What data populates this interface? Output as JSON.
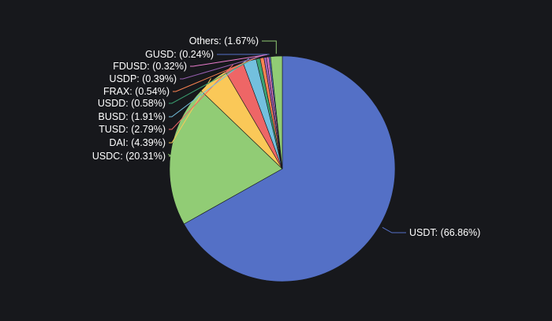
{
  "chart_data": {
    "type": "pie",
    "start_angle_deg": 0,
    "direction": "clockwise",
    "legend": "none",
    "slices": [
      {
        "label": "USDT",
        "value": 66.86,
        "text": "USDT: (66.86%)",
        "color": "#5470c6"
      },
      {
        "label": "USDC",
        "value": 20.31,
        "text": "USDC: (20.31%)",
        "color": "#91cc75"
      },
      {
        "label": "DAI",
        "value": 4.39,
        "text": "DAI: (4.39%)",
        "color": "#fac858"
      },
      {
        "label": "TUSD",
        "value": 2.79,
        "text": "TUSD: (2.79%)",
        "color": "#ee6666"
      },
      {
        "label": "BUSD",
        "value": 1.91,
        "text": "BUSD: (1.91%)",
        "color": "#73c0de"
      },
      {
        "label": "USDD",
        "value": 0.58,
        "text": "USDD: (0.58%)",
        "color": "#3ba272"
      },
      {
        "label": "FRAX",
        "value": 0.54,
        "text": "FRAX: (0.54%)",
        "color": "#fc8452"
      },
      {
        "label": "USDP",
        "value": 0.39,
        "text": "USDP: (0.39%)",
        "color": "#9a60b4"
      },
      {
        "label": "FDUSD",
        "value": 0.32,
        "text": "FDUSD: (0.32%)",
        "color": "#ea7ccc"
      },
      {
        "label": "GUSD",
        "value": 0.24,
        "text": "GUSD: (0.24%)",
        "color": "#5470c6"
      },
      {
        "label": "Others",
        "value": 1.67,
        "text": "Others: (1.67%)",
        "color": "#91cc75"
      }
    ]
  }
}
